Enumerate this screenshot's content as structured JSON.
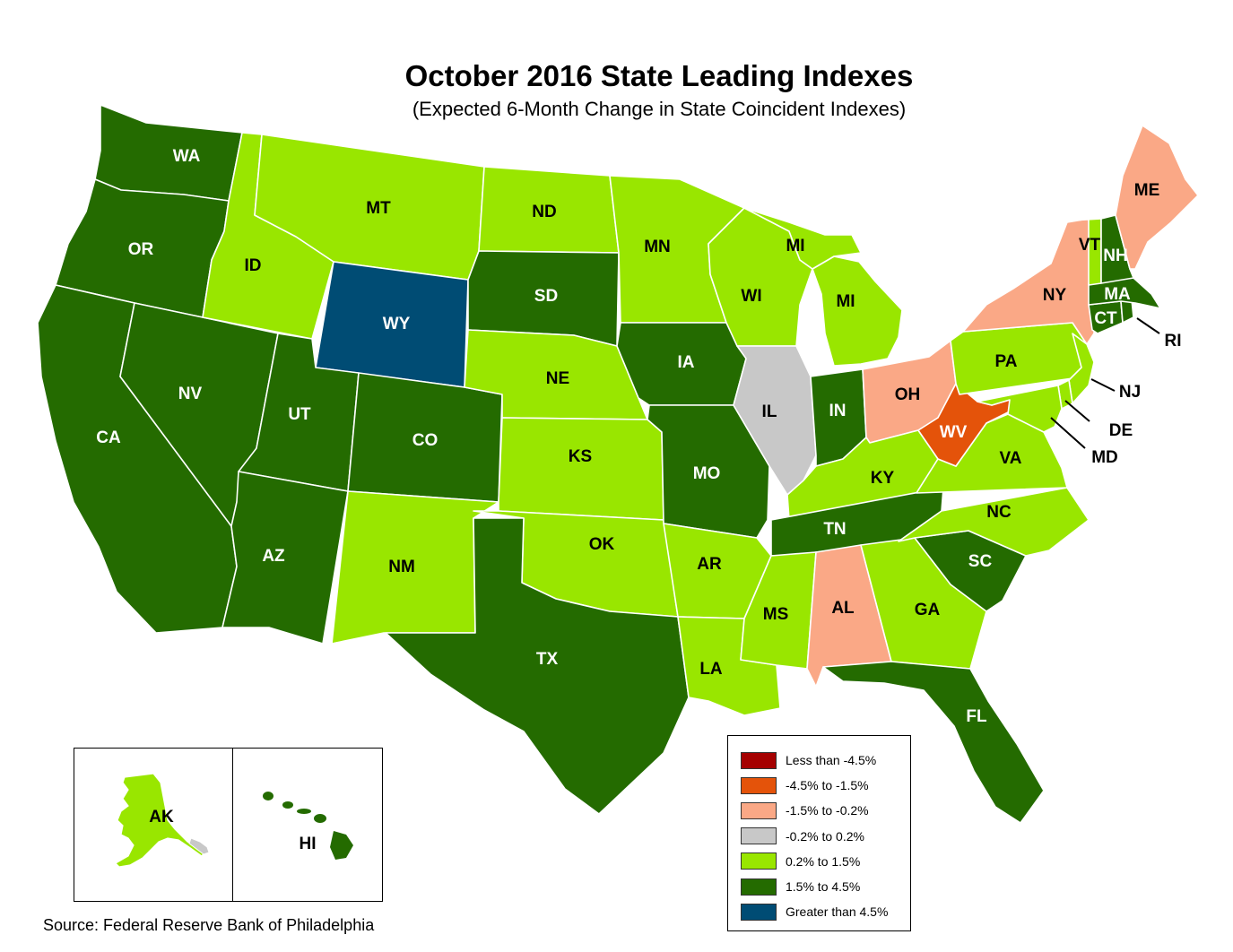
{
  "title": "October 2016 State Leading Indexes",
  "subtitle": "(Expected 6-Month Change in State Coincident Indexes)",
  "source": "Source: Federal Reserve Bank of Philadelphia",
  "legend": {
    "items": [
      {
        "key": "lt_neg4_5",
        "label": "Less than -4.5%",
        "color": "#A50000"
      },
      {
        "key": "neg4_5_neg1_5",
        "label": "-4.5% to -1.5%",
        "color": "#E4530A"
      },
      {
        "key": "neg1_5_neg0_2",
        "label": "-1.5% to -0.2%",
        "color": "#FAA886"
      },
      {
        "key": "neg0_2_0_2",
        "label": "-0.2% to 0.2%",
        "color": "#C8C8C8"
      },
      {
        "key": "p0_2_1_5",
        "label": "0.2% to 1.5%",
        "color": "#99E600"
      },
      {
        "key": "p1_5_4_5",
        "label": "1.5% to 4.5%",
        "color": "#246B00"
      },
      {
        "key": "gt_4_5",
        "label": "Greater than 4.5%",
        "color": "#004C74"
      }
    ]
  },
  "states": {
    "WA": {
      "label": "WA",
      "category": "p1_5_4_5"
    },
    "OR": {
      "label": "OR",
      "category": "p1_5_4_5"
    },
    "CA": {
      "label": "CA",
      "category": "p1_5_4_5"
    },
    "NV": {
      "label": "NV",
      "category": "p1_5_4_5"
    },
    "ID": {
      "label": "ID",
      "category": "p0_2_1_5"
    },
    "MT": {
      "label": "MT",
      "category": "p0_2_1_5"
    },
    "WY": {
      "label": "WY",
      "category": "gt_4_5"
    },
    "UT": {
      "label": "UT",
      "category": "p1_5_4_5"
    },
    "AZ": {
      "label": "AZ",
      "category": "p1_5_4_5"
    },
    "CO": {
      "label": "CO",
      "category": "p1_5_4_5"
    },
    "NM": {
      "label": "NM",
      "category": "p0_2_1_5"
    },
    "ND": {
      "label": "ND",
      "category": "p0_2_1_5"
    },
    "SD": {
      "label": "SD",
      "category": "p1_5_4_5"
    },
    "NE": {
      "label": "NE",
      "category": "p0_2_1_5"
    },
    "KS": {
      "label": "KS",
      "category": "p0_2_1_5"
    },
    "OK": {
      "label": "OK",
      "category": "p0_2_1_5"
    },
    "TX": {
      "label": "TX",
      "category": "p1_5_4_5"
    },
    "MN": {
      "label": "MN",
      "category": "p0_2_1_5"
    },
    "IA": {
      "label": "IA",
      "category": "p1_5_4_5"
    },
    "MO": {
      "label": "MO",
      "category": "p1_5_4_5"
    },
    "AR": {
      "label": "AR",
      "category": "p0_2_1_5"
    },
    "LA": {
      "label": "LA",
      "category": "p0_2_1_5"
    },
    "WI": {
      "label": "WI",
      "category": "p0_2_1_5"
    },
    "IL": {
      "label": "IL",
      "category": "neg0_2_0_2"
    },
    "MI": {
      "label": "MI",
      "category": "p0_2_1_5"
    },
    "MI_UP": {
      "label": "MI",
      "category": "p0_2_1_5"
    },
    "IN": {
      "label": "IN",
      "category": "p1_5_4_5"
    },
    "OH": {
      "label": "OH",
      "category": "neg1_5_neg0_2"
    },
    "KY": {
      "label": "KY",
      "category": "p0_2_1_5"
    },
    "TN": {
      "label": "TN",
      "category": "p1_5_4_5"
    },
    "MS": {
      "label": "MS",
      "category": "p0_2_1_5"
    },
    "AL": {
      "label": "AL",
      "category": "neg1_5_neg0_2"
    },
    "GA": {
      "label": "GA",
      "category": "p0_2_1_5"
    },
    "FL": {
      "label": "FL",
      "category": "p1_5_4_5"
    },
    "SC": {
      "label": "SC",
      "category": "p1_5_4_5"
    },
    "NC": {
      "label": "NC",
      "category": "p0_2_1_5"
    },
    "VA": {
      "label": "VA",
      "category": "p0_2_1_5"
    },
    "WV": {
      "label": "WV",
      "category": "neg4_5_neg1_5"
    },
    "PA": {
      "label": "PA",
      "category": "p0_2_1_5"
    },
    "NY": {
      "label": "NY",
      "category": "neg1_5_neg0_2"
    },
    "NJ": {
      "label": "NJ",
      "category": "p0_2_1_5"
    },
    "DE": {
      "label": "DE",
      "category": "p0_2_1_5"
    },
    "MD": {
      "label": "MD",
      "category": "p0_2_1_5"
    },
    "CT": {
      "label": "CT",
      "category": "p1_5_4_5"
    },
    "RI": {
      "label": "RI",
      "category": "p1_5_4_5"
    },
    "MA": {
      "label": "MA",
      "category": "p1_5_4_5"
    },
    "VT": {
      "label": "VT",
      "category": "p0_2_1_5"
    },
    "NH": {
      "label": "NH",
      "category": "p1_5_4_5"
    },
    "ME": {
      "label": "ME",
      "category": "neg1_5_neg0_2"
    },
    "AK": {
      "label": "AK",
      "category": "p0_2_1_5"
    },
    "HI": {
      "label": "HI",
      "category": "p1_5_4_5"
    }
  }
}
